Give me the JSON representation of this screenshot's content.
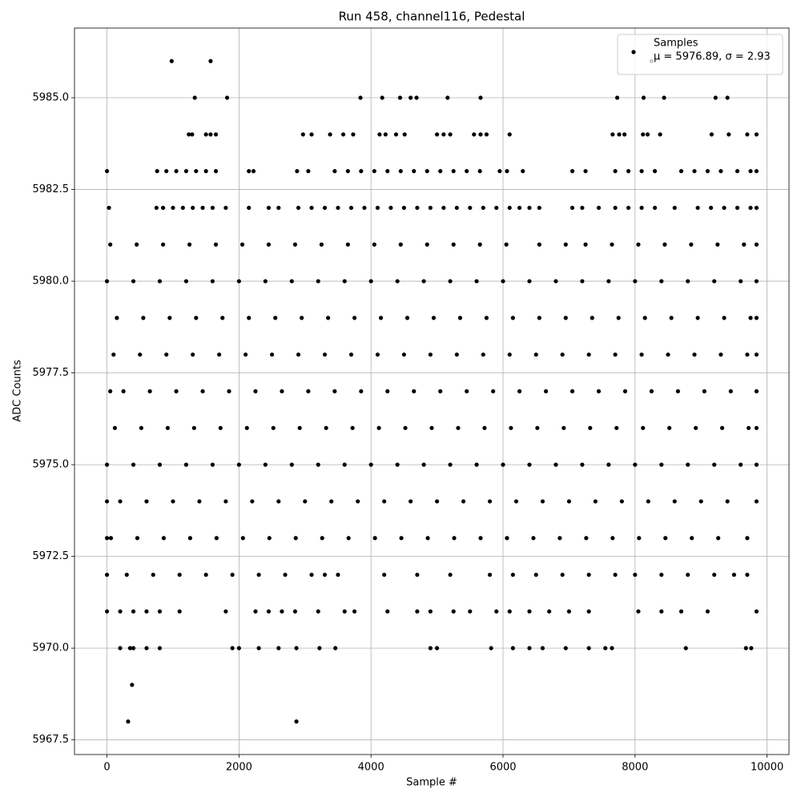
{
  "chart_data": {
    "type": "scatter",
    "title": "Run 458, channel116, Pedestal",
    "x_label": "Sample #",
    "y_label": "ADC Counts",
    "xlim": [
      -492,
      10332
    ],
    "ylim": [
      5967.1,
      5986.9
    ],
    "xticks": [
      0,
      2000,
      4000,
      6000,
      8000,
      10000
    ],
    "yticks": [
      5967.5,
      {
        "value": 5970,
        "label": "5970.0"
      },
      5972.5,
      {
        "value": 5975,
        "label": "5975.0"
      },
      5977.5,
      {
        "value": 5980,
        "label": "5980.0"
      },
      5982.5,
      {
        "value": 5985,
        "label": "5985.0"
      }
    ],
    "grid": true,
    "legend": "upper right",
    "legend_note": "μ = 5976.89, σ = 2.93",
    "x": [
      980,
      1570,
      8250,
      1330,
      1820,
      3840,
      4170,
      4440,
      4600,
      4690,
      5160,
      5660,
      7730,
      8130,
      8440,
      9220,
      9400,
      1240,
      1290,
      1500,
      1570,
      1650,
      2970,
      3100,
      3380,
      3580,
      3730,
      4130,
      4220,
      4380,
      4510,
      5000,
      5100,
      5200,
      5560,
      5660,
      5750,
      6100,
      7660,
      7760,
      7840,
      8120,
      8190,
      8380,
      9160,
      9420,
      9700,
      9840,
      0,
      760,
      900,
      1050,
      1200,
      1350,
      1500,
      1650,
      2150,
      2220,
      2880,
      3050,
      3450,
      3650,
      3850,
      4050,
      4250,
      4450,
      4650,
      4850,
      5050,
      5250,
      5450,
      5650,
      5950,
      6060,
      6300,
      7050,
      7250,
      7700,
      7900,
      8100,
      8300,
      8700,
      8900,
      9100,
      9300,
      9550,
      9750,
      9840,
      30,
      750,
      850,
      1000,
      1150,
      1300,
      1450,
      1600,
      1800,
      2150,
      2450,
      2600,
      2900,
      3100,
      3300,
      3500,
      3700,
      3900,
      4100,
      4300,
      4500,
      4700,
      4900,
      5100,
      5300,
      5500,
      5700,
      5900,
      6100,
      6250,
      6400,
      6550,
      7050,
      7200,
      7450,
      7700,
      7900,
      8100,
      8300,
      8600,
      8950,
      9150,
      9350,
      9550,
      9750,
      9840,
      50,
      450,
      850,
      1250,
      1650,
      2050,
      2450,
      2850,
      3250,
      3650,
      4050,
      4450,
      4850,
      5250,
      5650,
      6050,
      6550,
      6950,
      7250,
      7650,
      8050,
      8450,
      8850,
      9250,
      9650,
      9840,
      0,
      400,
      800,
      1200,
      1600,
      2000,
      2400,
      2800,
      3200,
      3600,
      4000,
      4400,
      4800,
      5200,
      5600,
      6000,
      6400,
      6800,
      7200,
      7600,
      8000,
      8400,
      8800,
      9200,
      9600,
      9840,
      150,
      550,
      950,
      1350,
      1750,
      2150,
      2550,
      2950,
      3350,
      3750,
      4150,
      4550,
      4950,
      5350,
      5750,
      6150,
      6550,
      6950,
      7350,
      7750,
      8150,
      8550,
      8950,
      9350,
      9750,
      9840,
      100,
      500,
      900,
      1300,
      1700,
      2100,
      2500,
      2900,
      3300,
      3700,
      4100,
      4500,
      4900,
      5300,
      5700,
      6100,
      6500,
      6900,
      7300,
      7700,
      8100,
      8500,
      8900,
      9300,
      9700,
      9840,
      50,
      250,
      650,
      1050,
      1450,
      1850,
      2250,
      2650,
      3050,
      3450,
      3850,
      4250,
      4650,
      5050,
      5450,
      5850,
      6250,
      6650,
      7050,
      7450,
      7850,
      8250,
      8650,
      9050,
      9450,
      9840,
      120,
      520,
      920,
      1320,
      1720,
      2120,
      2520,
      2920,
      3320,
      3720,
      4120,
      4520,
      4920,
      5320,
      5720,
      6120,
      6520,
      6920,
      7320,
      7720,
      8120,
      8520,
      8920,
      9320,
      9720,
      9840,
      0,
      400,
      800,
      1200,
      1600,
      2000,
      2400,
      2800,
      3200,
      3600,
      4000,
      4400,
      4800,
      5200,
      5600,
      6000,
      6400,
      6800,
      7200,
      7600,
      8000,
      8400,
      8800,
      9200,
      9600,
      9840,
      0,
      200,
      600,
      1000,
      1400,
      1800,
      2200,
      2600,
      3000,
      3400,
      3800,
      4200,
      4600,
      5000,
      5400,
      5800,
      6200,
      6600,
      7000,
      7400,
      7800,
      8200,
      8600,
      9000,
      9400,
      9840,
      0,
      60,
      460,
      860,
      1260,
      1660,
      2060,
      2460,
      2860,
      3260,
      3660,
      4060,
      4460,
      4860,
      5260,
      5660,
      6060,
      6460,
      6860,
      7260,
      7660,
      8060,
      8460,
      8860,
      9260,
      9700,
      0,
      300,
      700,
      1100,
      1500,
      1900,
      2300,
      2700,
      3100,
      3300,
      3500,
      4200,
      4700,
      5200,
      5800,
      6150,
      6500,
      6900,
      7300,
      7700,
      8000,
      8400,
      8800,
      9200,
      9500,
      9700,
      0,
      200,
      400,
      600,
      800,
      1100,
      1800,
      2250,
      2450,
      2650,
      2850,
      3200,
      3600,
      3750,
      4250,
      4700,
      4900,
      5250,
      5500,
      5900,
      6100,
      6400,
      6700,
      7000,
      7300,
      8050,
      8400,
      8700,
      9100,
      9840,
      200,
      350,
      400,
      600,
      800,
      1900,
      2000,
      2300,
      2600,
      2870,
      3220,
      3460,
      4900,
      5000,
      5820,
      6150,
      6400,
      6600,
      6950,
      7300,
      7550,
      7650,
      8770,
      9680,
      9760,
      380,
      320,
      2870
    ],
    "series": [
      {
        "name": "Samples",
        "color": "#000000",
        "values": [
          5986,
          5986,
          5986,
          5985,
          5985,
          5985,
          5985,
          5985,
          5985,
          5985,
          5985,
          5985,
          5985,
          5985,
          5985,
          5985,
          5985,
          5984,
          5984,
          5984,
          5984,
          5984,
          5984,
          5984,
          5984,
          5984,
          5984,
          5984,
          5984,
          5984,
          5984,
          5984,
          5984,
          5984,
          5984,
          5984,
          5984,
          5984,
          5984,
          5984,
          5984,
          5984,
          5984,
          5984,
          5984,
          5984,
          5984,
          5984,
          5983,
          5983,
          5983,
          5983,
          5983,
          5983,
          5983,
          5983,
          5983,
          5983,
          5983,
          5983,
          5983,
          5983,
          5983,
          5983,
          5983,
          5983,
          5983,
          5983,
          5983,
          5983,
          5983,
          5983,
          5983,
          5983,
          5983,
          5983,
          5983,
          5983,
          5983,
          5983,
          5983,
          5983,
          5983,
          5983,
          5983,
          5983,
          5983,
          5983,
          5982,
          5982,
          5982,
          5982,
          5982,
          5982,
          5982,
          5982,
          5982,
          5982,
          5982,
          5982,
          5982,
          5982,
          5982,
          5982,
          5982,
          5982,
          5982,
          5982,
          5982,
          5982,
          5982,
          5982,
          5982,
          5982,
          5982,
          5982,
          5982,
          5982,
          5982,
          5982,
          5982,
          5982,
          5982,
          5982,
          5982,
          5982,
          5982,
          5982,
          5982,
          5982,
          5982,
          5982,
          5982,
          5982,
          5981,
          5981,
          5981,
          5981,
          5981,
          5981,
          5981,
          5981,
          5981,
          5981,
          5981,
          5981,
          5981,
          5981,
          5981,
          5981,
          5981,
          5981,
          5981,
          5981,
          5981,
          5981,
          5981,
          5981,
          5981,
          5981,
          5980,
          5980,
          5980,
          5980,
          5980,
          5980,
          5980,
          5980,
          5980,
          5980,
          5980,
          5980,
          5980,
          5980,
          5980,
          5980,
          5980,
          5980,
          5980,
          5980,
          5980,
          5980,
          5980,
          5980,
          5980,
          5980,
          5979,
          5979,
          5979,
          5979,
          5979,
          5979,
          5979,
          5979,
          5979,
          5979,
          5979,
          5979,
          5979,
          5979,
          5979,
          5979,
          5979,
          5979,
          5979,
          5979,
          5979,
          5979,
          5979,
          5979,
          5979,
          5979,
          5978,
          5978,
          5978,
          5978,
          5978,
          5978,
          5978,
          5978,
          5978,
          5978,
          5978,
          5978,
          5978,
          5978,
          5978,
          5978,
          5978,
          5978,
          5978,
          5978,
          5978,
          5978,
          5978,
          5978,
          5978,
          5978,
          5977,
          5977,
          5977,
          5977,
          5977,
          5977,
          5977,
          5977,
          5977,
          5977,
          5977,
          5977,
          5977,
          5977,
          5977,
          5977,
          5977,
          5977,
          5977,
          5977,
          5977,
          5977,
          5977,
          5977,
          5977,
          5977,
          5976,
          5976,
          5976,
          5976,
          5976,
          5976,
          5976,
          5976,
          5976,
          5976,
          5976,
          5976,
          5976,
          5976,
          5976,
          5976,
          5976,
          5976,
          5976,
          5976,
          5976,
          5976,
          5976,
          5976,
          5976,
          5976,
          5975,
          5975,
          5975,
          5975,
          5975,
          5975,
          5975,
          5975,
          5975,
          5975,
          5975,
          5975,
          5975,
          5975,
          5975,
          5975,
          5975,
          5975,
          5975,
          5975,
          5975,
          5975,
          5975,
          5975,
          5975,
          5975,
          5974,
          5974,
          5974,
          5974,
          5974,
          5974,
          5974,
          5974,
          5974,
          5974,
          5974,
          5974,
          5974,
          5974,
          5974,
          5974,
          5974,
          5974,
          5974,
          5974,
          5974,
          5974,
          5974,
          5974,
          5974,
          5974,
          5973,
          5973,
          5973,
          5973,
          5973,
          5973,
          5973,
          5973,
          5973,
          5973,
          5973,
          5973,
          5973,
          5973,
          5973,
          5973,
          5973,
          5973,
          5973,
          5973,
          5973,
          5973,
          5973,
          5973,
          5973,
          5973,
          5972,
          5972,
          5972,
          5972,
          5972,
          5972,
          5972,
          5972,
          5972,
          5972,
          5972,
          5972,
          5972,
          5972,
          5972,
          5972,
          5972,
          5972,
          5972,
          5972,
          5972,
          5972,
          5972,
          5972,
          5972,
          5972,
          5971,
          5971,
          5971,
          5971,
          5971,
          5971,
          5971,
          5971,
          5971,
          5971,
          5971,
          5971,
          5971,
          5971,
          5971,
          5971,
          5971,
          5971,
          5971,
          5971,
          5971,
          5971,
          5971,
          5971,
          5971,
          5971,
          5971,
          5971,
          5971,
          5971,
          5970,
          5970,
          5970,
          5970,
          5970,
          5970,
          5970,
          5970,
          5970,
          5970,
          5970,
          5970,
          5970,
          5970,
          5970,
          5970,
          5970,
          5970,
          5970,
          5970,
          5970,
          5970,
          5970,
          5970,
          5970,
          5969,
          5968,
          5968
        ]
      }
    ]
  }
}
